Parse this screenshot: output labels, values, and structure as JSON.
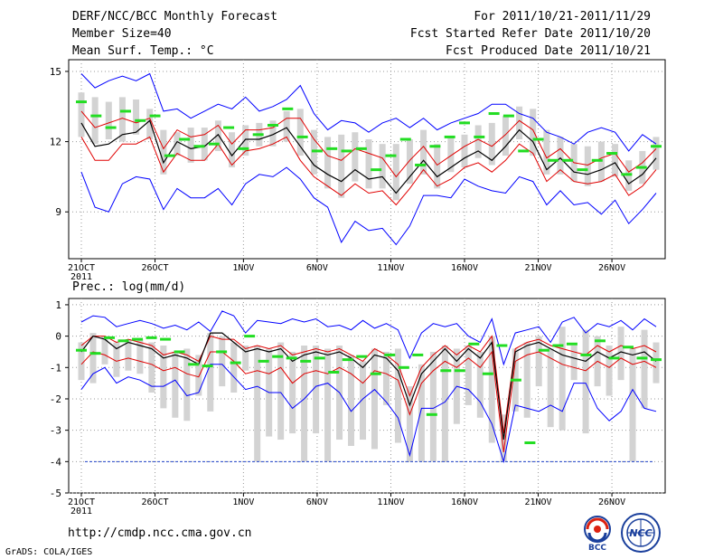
{
  "header": {
    "title": "DERF/NCC/BCC Monthly Forecast",
    "member_size": "Member Size=40",
    "variable": "Mean Surf. Temp.: °C",
    "forecast_period": "For 2011/10/21-2011/11/29",
    "start_date": "Fcst Started Refer Date 2011/10/20",
    "produced_date": "Fcst Produced Date 2011/10/21"
  },
  "footer": {
    "url": "http://cmdp.ncc.cma.gov.cn",
    "credit": "GrADS: COLA/IGES",
    "logo_left_text": "BCC",
    "logo_right_text": "NCC"
  },
  "colors": {
    "envelope": "#0000ff",
    "spread": "#e00000",
    "mean": "#000000",
    "bar": "#d3d3d3",
    "observed": "#22dd22",
    "floor_line": "#2244cc"
  },
  "chart_data": [
    {
      "type": "line",
      "title": "Mean Surf. Temp.: °C",
      "ylim": [
        7,
        15.5
      ],
      "yticks": [
        9,
        12,
        15
      ],
      "x_tick_labels": [
        "21OCT",
        "26OCT",
        "1NOV",
        "6NOV",
        "11NOV",
        "16NOV",
        "21NOV",
        "26NOV"
      ],
      "x_tick_days": [
        1,
        6,
        12,
        17,
        22,
        27,
        32,
        37
      ],
      "year_label": "2011",
      "series": [
        {
          "name": "max",
          "values": [
            14.9,
            14.3,
            14.6,
            14.8,
            14.6,
            14.9,
            13.3,
            13.4,
            13.0,
            13.3,
            13.6,
            13.4,
            13.9,
            13.3,
            13.5,
            13.8,
            14.4,
            13.2,
            12.5,
            12.9,
            12.8,
            12.4,
            12.8,
            13.0,
            12.6,
            13.0,
            12.5,
            12.8,
            13.0,
            13.2,
            13.6,
            13.6,
            13.2,
            13.0,
            12.4,
            12.2,
            11.9,
            12.4,
            12.6,
            12.4,
            11.6,
            12.3,
            11.9
          ]
        },
        {
          "name": "upper",
          "values": [
            13.3,
            12.6,
            12.8,
            13.0,
            12.8,
            13.0,
            11.7,
            12.5,
            12.2,
            12.3,
            12.7,
            11.9,
            12.5,
            12.5,
            12.6,
            13.0,
            13.0,
            12.1,
            11.4,
            11.2,
            11.7,
            11.5,
            11.3,
            10.5,
            11.2,
            11.8,
            11.0,
            11.4,
            11.8,
            12.1,
            11.8,
            12.3,
            12.9,
            12.5,
            11.3,
            11.7,
            11.1,
            11.0,
            11.3,
            11.5,
            10.7,
            11.1,
            11.7
          ]
        },
        {
          "name": "mean",
          "values": [
            12.8,
            11.8,
            11.9,
            12.3,
            12.4,
            12.9,
            11.1,
            12.0,
            11.7,
            11.8,
            12.3,
            11.4,
            12.1,
            12.1,
            12.3,
            12.6,
            11.8,
            11.0,
            10.6,
            10.3,
            10.8,
            10.4,
            10.5,
            9.8,
            10.5,
            11.2,
            10.5,
            10.9,
            11.3,
            11.6,
            11.2,
            11.8,
            12.5,
            12.0,
            10.8,
            11.3,
            10.7,
            10.6,
            10.8,
            11.1,
            10.2,
            10.6,
            11.3
          ]
        },
        {
          "name": "lower",
          "values": [
            12.2,
            11.2,
            11.2,
            11.9,
            11.9,
            12.2,
            10.7,
            11.5,
            11.2,
            11.2,
            11.9,
            11.0,
            11.6,
            11.7,
            11.9,
            12.2,
            11.2,
            10.5,
            10.1,
            9.7,
            10.2,
            9.8,
            9.9,
            9.3,
            10.0,
            10.8,
            10.1,
            10.4,
            10.9,
            11.1,
            10.7,
            11.2,
            11.9,
            11.5,
            10.3,
            10.8,
            10.3,
            10.2,
            10.3,
            10.6,
            9.7,
            10.1,
            10.8
          ]
        },
        {
          "name": "min",
          "values": [
            10.7,
            9.2,
            9.0,
            10.2,
            10.5,
            10.4,
            9.1,
            10.0,
            9.6,
            9.6,
            10.0,
            9.3,
            10.2,
            10.6,
            10.5,
            10.9,
            10.4,
            9.6,
            9.2,
            7.7,
            8.6,
            8.2,
            8.3,
            7.6,
            8.4,
            9.7,
            9.7,
            9.6,
            10.4,
            10.1,
            9.9,
            9.8,
            10.5,
            10.3,
            9.3,
            9.9,
            9.3,
            9.4,
            8.9,
            9.5,
            8.5,
            9.1,
            9.8
          ]
        },
        {
          "name": "box_top",
          "values": [
            14.1,
            13.9,
            13.7,
            13.9,
            13.8,
            13.4,
            12.5,
            12.4,
            12.6,
            12.6,
            12.9,
            12.4,
            12.7,
            12.8,
            12.9,
            13.3,
            13.4,
            12.5,
            12.2,
            12.3,
            12.4,
            12.1,
            11.9,
            11.9,
            12.1,
            12.5,
            11.9,
            12.2,
            12.3,
            12.7,
            12.8,
            13.1,
            13.5,
            13.4,
            12.5,
            12.2,
            11.9,
            11.8,
            12.0,
            11.9,
            11.2,
            11.6,
            12.2
          ]
        },
        {
          "name": "box_bottom",
          "values": [
            12.2,
            11.9,
            12.1,
            12.0,
            12.3,
            12.1,
            10.6,
            11.4,
            11.1,
            11.2,
            11.6,
            10.9,
            11.4,
            11.8,
            11.8,
            12.0,
            11.4,
            10.6,
            10.0,
            9.6,
            10.3,
            10.0,
            10.0,
            9.5,
            10.2,
            10.6,
            10.0,
            10.7,
            10.9,
            11.3,
            11.0,
            11.4,
            12.1,
            11.4,
            10.6,
            10.6,
            10.3,
            10.1,
            10.3,
            10.5,
            9.9,
            10.2,
            10.8
          ]
        },
        {
          "name": "observed",
          "values": [
            13.7,
            13.1,
            12.6,
            13.3,
            12.9,
            13.1,
            11.4,
            12.1,
            11.8,
            11.9,
            12.6,
            11.7,
            12.3,
            12.7,
            13.4,
            12.2,
            11.6,
            11.7,
            11.6,
            11.7,
            10.8,
            11.4,
            12.1,
            11.0,
            11.8,
            12.2,
            12.8,
            12.2,
            13.2,
            13.1,
            11.6,
            12.1,
            11.2,
            11.2,
            10.8,
            11.2,
            11.5,
            10.6,
            10.9,
            11.8
          ]
        }
      ]
    },
    {
      "type": "line",
      "title": "Prec.: log(mm/d)",
      "ylim": [
        -5,
        1.2
      ],
      "yticks": [
        -5,
        -4,
        -3,
        -2,
        -1,
        0,
        1
      ],
      "x_tick_labels": [
        "21OCT",
        "26OCT",
        "1NOV",
        "6NOV",
        "11NOV",
        "16NOV",
        "21NOV",
        "26NOV"
      ],
      "x_tick_days": [
        1,
        6,
        12,
        17,
        22,
        27,
        32,
        37
      ],
      "year_label": "2011",
      "series": [
        {
          "name": "max",
          "values": [
            0.45,
            0.65,
            0.6,
            0.3,
            0.4,
            0.5,
            0.4,
            0.25,
            0.35,
            0.2,
            0.45,
            0.15,
            0.8,
            0.65,
            0.1,
            0.5,
            0.45,
            0.4,
            0.55,
            0.45,
            0.55,
            0.3,
            0.35,
            0.2,
            0.5,
            0.25,
            0.4,
            0.2,
            -0.7,
            0.1,
            0.4,
            0.3,
            0.4,
            0.0,
            -0.2,
            0.55,
            -0.9,
            0.1,
            0.2,
            0.3,
            -0.2,
            0.45,
            0.6,
            0.1,
            0.4,
            0.3,
            0.5,
            0.2,
            0.55,
            0.3
          ]
        },
        {
          "name": "upper",
          "values": [
            -0.3,
            0.0,
            0.0,
            -0.2,
            -0.1,
            -0.2,
            -0.3,
            -0.6,
            -0.5,
            -0.6,
            -0.8,
            0.0,
            -0.1,
            -0.1,
            -0.4,
            -0.3,
            -0.4,
            -0.3,
            -0.6,
            -0.5,
            -0.4,
            -0.5,
            -0.4,
            -0.6,
            -0.8,
            -0.4,
            -0.6,
            -0.9,
            -1.9,
            -1.0,
            -0.6,
            -0.3,
            -0.6,
            -0.3,
            -0.5,
            0.0,
            -3.1,
            -0.4,
            -0.2,
            -0.1,
            -0.3,
            -0.4,
            -0.5,
            -0.6,
            -0.3,
            -0.5,
            -0.3,
            -0.4,
            -0.3,
            -0.5
          ]
        },
        {
          "name": "mean",
          "values": [
            -0.5,
            0.0,
            -0.1,
            -0.4,
            -0.2,
            -0.3,
            -0.4,
            -0.7,
            -0.6,
            -0.7,
            -0.9,
            0.1,
            0.1,
            -0.2,
            -0.5,
            -0.4,
            -0.5,
            -0.4,
            -0.8,
            -0.6,
            -0.5,
            -0.6,
            -0.5,
            -0.7,
            -1.0,
            -0.6,
            -0.7,
            -1.1,
            -2.2,
            -1.2,
            -0.8,
            -0.4,
            -0.8,
            -0.4,
            -0.7,
            -0.2,
            -3.3,
            -0.5,
            -0.3,
            -0.2,
            -0.4,
            -0.6,
            -0.7,
            -0.8,
            -0.5,
            -0.7,
            -0.5,
            -0.6,
            -0.5,
            -0.8
          ]
        },
        {
          "name": "lower",
          "values": [
            -0.9,
            -0.5,
            -0.6,
            -0.8,
            -0.7,
            -0.8,
            -0.9,
            -1.1,
            -1.0,
            -1.2,
            -1.3,
            -0.5,
            -0.5,
            -0.8,
            -1.2,
            -1.1,
            -1.2,
            -1.0,
            -1.5,
            -1.2,
            -1.1,
            -1.2,
            -1.0,
            -1.2,
            -1.5,
            -1.1,
            -1.2,
            -1.4,
            -2.5,
            -1.5,
            -1.1,
            -0.8,
            -1.0,
            -0.7,
            -1.0,
            -0.5,
            -3.7,
            -0.8,
            -0.6,
            -0.5,
            -0.7,
            -0.9,
            -1.0,
            -1.1,
            -0.8,
            -1.0,
            -0.7,
            -0.9,
            -0.8,
            -1.0
          ]
        },
        {
          "name": "min",
          "values": [
            -1.7,
            -1.2,
            -1.0,
            -1.5,
            -1.3,
            -1.4,
            -1.6,
            -1.6,
            -1.4,
            -1.9,
            -1.8,
            -0.9,
            -0.9,
            -1.3,
            -1.7,
            -1.6,
            -1.8,
            -1.8,
            -2.3,
            -2.0,
            -1.6,
            -1.5,
            -1.8,
            -2.4,
            -2.0,
            -1.7,
            -2.1,
            -2.6,
            -3.8,
            -2.3,
            -2.3,
            -2.1,
            -1.6,
            -1.7,
            -2.1,
            -2.8,
            -4.0,
            -2.2,
            -2.3,
            -2.4,
            -2.2,
            -2.4,
            -1.5,
            -1.5,
            -2.3,
            -2.7,
            -2.4,
            -1.7,
            -2.3,
            -2.4
          ]
        },
        {
          "name": "box_top",
          "values": [
            -0.2,
            0.1,
            0.0,
            -0.2,
            -0.1,
            -0.1,
            -0.2,
            -0.3,
            -0.5,
            -0.4,
            -0.6,
            0.1,
            0.0,
            -0.2,
            -0.3,
            -0.3,
            -0.4,
            -0.2,
            -0.5,
            -0.3,
            -0.3,
            -0.4,
            -0.3,
            -0.6,
            -0.8,
            -0.4,
            -0.5,
            -0.4,
            -1.6,
            -0.9,
            -0.5,
            -0.3,
            -0.4,
            -0.3,
            -0.5,
            0.0,
            -2.5,
            -0.4,
            -0.2,
            0.0,
            -0.4,
            0.3,
            -0.3,
            0.2,
            0.0,
            -0.3,
            0.3,
            -0.4,
            0.2,
            -0.2
          ]
        },
        {
          "name": "box_bottom",
          "values": [
            -1.4,
            -1.5,
            -0.9,
            -1.3,
            -1.1,
            -1.2,
            -1.8,
            -2.3,
            -2.6,
            -2.7,
            -1.9,
            -2.4,
            -1.6,
            -1.8,
            -1.1,
            -4.0,
            -3.2,
            -3.3,
            -3.1,
            -4.0,
            -3.1,
            -4.0,
            -3.3,
            -3.5,
            -3.3,
            -3.6,
            -2.2,
            -3.4,
            -4.0,
            -4.0,
            -4.0,
            -4.0,
            -2.8,
            -2.2,
            -2.6,
            -3.4,
            -4.0,
            -2.4,
            -2.6,
            -1.6,
            -2.9,
            -3.0,
            -1.4,
            -3.1,
            -1.6,
            -1.9,
            -1.4,
            -4.0,
            -2.3,
            -1.5
          ]
        },
        {
          "name": "observed",
          "values": [
            -0.45,
            -0.55,
            -0.05,
            -0.15,
            -0.1,
            -0.05,
            -0.1,
            -0.5,
            -0.9,
            -0.95,
            -0.5,
            -0.85,
            0.0,
            -0.8,
            -0.65,
            -0.7,
            -0.8,
            -0.7,
            -1.15,
            -0.75,
            -0.65,
            -1.2,
            -0.6,
            -1.0,
            -0.6,
            -2.5,
            -1.1,
            -1.1,
            -0.25,
            -1.2,
            -0.3,
            -1.4,
            -3.4,
            -0.45,
            -0.3,
            -0.25,
            -0.6,
            -0.15,
            -0.7,
            -0.35,
            -0.7,
            -0.75
          ]
        },
        {
          "name": "floor",
          "values": [
            -4.0,
            -4.0
          ]
        }
      ]
    }
  ]
}
